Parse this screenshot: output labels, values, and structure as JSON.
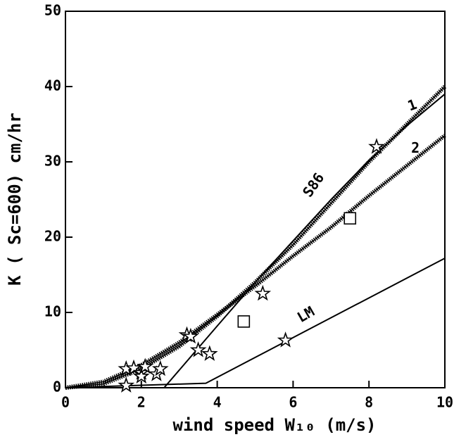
{
  "chart_data": {
    "type": "line",
    "xlabel": "wind speed W₁₀ (m/s)",
    "ylabel": "K ( Sc=600)  cm/hr",
    "xlim": [
      0,
      10
    ],
    "ylim": [
      0,
      50
    ],
    "xticks": [
      0,
      2,
      4,
      6,
      8,
      10
    ],
    "yticks": [
      0,
      10,
      20,
      30,
      40,
      50
    ],
    "color": "#000000",
    "series": [
      {
        "name": "1",
        "style": "hatched",
        "x": [
          0,
          1,
          2,
          3,
          4,
          5,
          6,
          7,
          8,
          9,
          10
        ],
        "values": [
          0,
          0.5,
          2.5,
          5.5,
          9.5,
          14,
          19,
          24.5,
          30,
          35,
          40
        ]
      },
      {
        "name": "2",
        "style": "hatched",
        "x": [
          0,
          1,
          2,
          3,
          4,
          5,
          6,
          7,
          8,
          9,
          10
        ],
        "values": [
          0,
          0.8,
          3,
          6,
          9.7,
          13.5,
          17.5,
          21.3,
          25.5,
          29.5,
          33.5
        ]
      },
      {
        "name": "S86",
        "style": "solid",
        "x": [
          2.6,
          4,
          5,
          6,
          7,
          8,
          9,
          10
        ],
        "values": [
          0,
          8.2,
          14,
          19.5,
          25,
          30.2,
          34.8,
          39
        ]
      },
      {
        "name": "LM",
        "style": "solid",
        "x": [
          0,
          3.7,
          10
        ],
        "values": [
          0,
          0.6,
          17.2
        ]
      }
    ],
    "points": [
      {
        "marker": "star",
        "x": [
          1.6,
          1.6,
          1.8,
          2.0,
          2.0,
          2.1,
          2.4,
          2.5,
          3.2,
          3.3,
          3.5,
          3.8,
          5.2,
          5.8,
          8.2
        ],
        "values": [
          0.3,
          2.5,
          2.6,
          2.0,
          1.5,
          2.8,
          1.8,
          2.5,
          7.0,
          6.8,
          5.0,
          4.5,
          12.5,
          6.3,
          32
        ]
      },
      {
        "marker": "square",
        "x": [
          4.7,
          7.5
        ],
        "values": [
          8.8,
          22.5
        ]
      }
    ]
  }
}
